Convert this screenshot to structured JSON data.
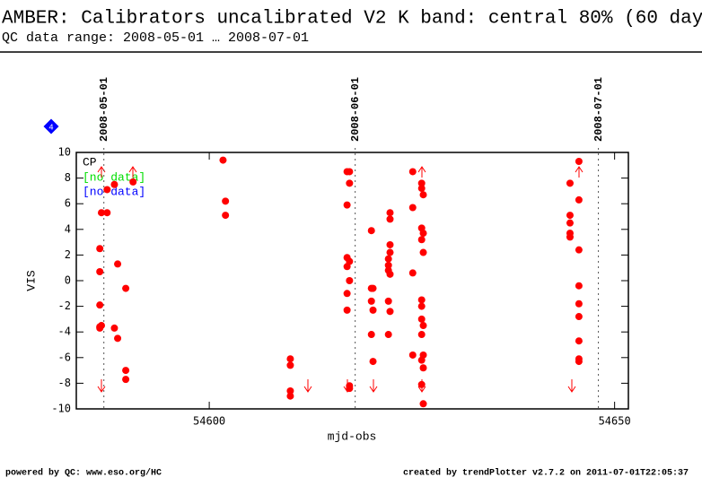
{
  "header": {
    "title": "AMBER: Calibrators uncalibrated V2 K band: central 80% (60 days",
    "subtitle": "QC data range: 2008-05-01 … 2008-07-01"
  },
  "chart_data": {
    "type": "scatter",
    "xlabel": "mjd-obs",
    "ylabel": "VIS",
    "xlim": [
      54583.6,
      54651.7
    ],
    "ylim": [
      -10,
      10
    ],
    "xticks": [
      54600,
      54650
    ],
    "yticks": [
      -10,
      -8,
      -6,
      -4,
      -2,
      0,
      2,
      4,
      6,
      8,
      10
    ],
    "date_lines": [
      {
        "value": 54587,
        "label": "2008-05-01"
      },
      {
        "value": 54618,
        "label": "2008-06-01"
      },
      {
        "value": 54648,
        "label": "2008-07-01"
      }
    ],
    "badge": "4",
    "series": [
      {
        "name": "CP",
        "color": "#ff0000",
        "x": [
          54586.5,
          54586.5,
          54586.5,
          54586.5,
          54586.5,
          54586.7,
          54586.7,
          54587.4,
          54587.4,
          54588.3,
          54588.3,
          54588.7,
          54588.7,
          54589.7,
          54589.7,
          54589.7,
          54590.6,
          54601.7,
          54602.0,
          54602.0,
          54610.0,
          54610.0,
          54610.0,
          54610.0,
          54617.0,
          54617.0,
          54617.0,
          54617.0,
          54617.0,
          54617.0,
          54617.3,
          54617.3,
          54617.3,
          54617.3,
          54617.3,
          54617.3,
          54620.0,
          54620.0,
          54620.0,
          54620.0,
          54620.2,
          54620.2,
          54620.2,
          54622.1,
          54622.1,
          54622.1,
          54622.1,
          54622.1,
          54622.3,
          54622.3,
          54622.3,
          54622.3,
          54622.3,
          54622.3,
          54625.1,
          54625.1,
          54625.1,
          54625.1,
          54626.2,
          54626.2,
          54626.2,
          54626.2,
          54626.2,
          54626.2,
          54626.2,
          54626.2,
          54626.2,
          54626.2,
          54626.4,
          54626.4,
          54626.4,
          54626.4,
          54626.4,
          54626.4,
          54626.4,
          54644.5,
          54644.5,
          54644.5,
          54644.5,
          54644.5,
          54645.6,
          54645.6,
          54645.6,
          54645.6,
          54645.6,
          54645.6,
          54645.6,
          54645.6,
          54645.6
        ],
        "values": [
          2.5,
          0.7,
          -1.9,
          -3.6,
          -3.7,
          5.3,
          -3.5,
          7.1,
          5.3,
          7.5,
          -3.7,
          1.3,
          -4.5,
          -0.6,
          -7.0,
          -7.7,
          7.7,
          9.4,
          6.2,
          5.1,
          -6.1,
          -6.6,
          -8.6,
          -9.0,
          8.5,
          5.9,
          1.8,
          1.1,
          -1.0,
          -2.3,
          8.5,
          7.6,
          1.5,
          0,
          -8.2,
          -8.4,
          3.9,
          -0.6,
          -1.6,
          -4.2,
          -0.6,
          -2.3,
          -6.3,
          1.7,
          1.2,
          0.8,
          -1.6,
          -4.2,
          5.3,
          4.8,
          2.8,
          2.2,
          0.5,
          -2.4,
          8.5,
          5.7,
          0.6,
          -5.8,
          7.6,
          7.2,
          4.1,
          3.2,
          -1.5,
          -2.0,
          -3.0,
          -4.2,
          -6.2,
          -8.1,
          6.7,
          3.7,
          2.2,
          -3.5,
          -5.8,
          -6.8,
          -9.6,
          7.6,
          5.1,
          4.5,
          3.7,
          3.4,
          9.3,
          6.3,
          2.4,
          -0.4,
          -1.8,
          -2.8,
          -4.7,
          -6.1,
          -6.3
        ]
      }
    ],
    "legend_extra": [
      {
        "name": "[no data]",
        "color": "#00dd00"
      },
      {
        "name": "[no data]",
        "color": "#0000ff"
      }
    ]
  },
  "footer": {
    "left": "powered by QC: www.eso.org/HC",
    "right": "created by trendPlotter v2.7.2 on 2011-07-01T22:05:37"
  }
}
